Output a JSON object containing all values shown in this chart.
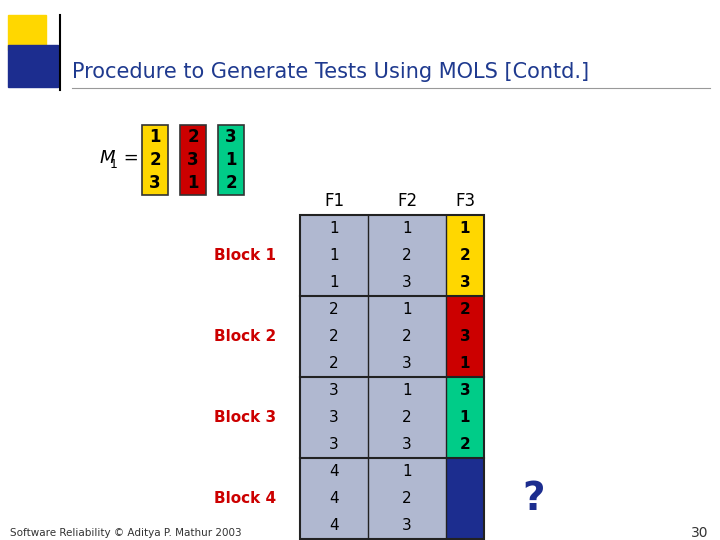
{
  "title": "Procedure to Generate Tests Using MOLS [Contd.]",
  "title_color": "#1F3A8F",
  "title_fontsize": 15,
  "bg_color": "#FFFFFF",
  "slide_number": "30",
  "footer_text": "Software Reliability © Aditya P. Mathur 2003",
  "M1_cols": [
    {
      "values": [
        "1",
        "2",
        "3"
      ],
      "color": "#FFD700"
    },
    {
      "values": [
        "2",
        "3",
        "1"
      ],
      "color": "#CC0000"
    },
    {
      "values": [
        "3",
        "1",
        "2"
      ],
      "color": "#00CC88"
    }
  ],
  "blocks": [
    {
      "label": "Block 1",
      "F1": [
        "1",
        "1",
        "1"
      ],
      "F2": [
        "1",
        "2",
        "3"
      ],
      "F3_values": [
        "1",
        "2",
        "3"
      ],
      "F3_color": "#FFD700"
    },
    {
      "label": "Block 2",
      "F1": [
        "2",
        "2",
        "2"
      ],
      "F2": [
        "1",
        "2",
        "3"
      ],
      "F3_values": [
        "2",
        "3",
        "1"
      ],
      "F3_color": "#CC0000"
    },
    {
      "label": "Block 3",
      "F1": [
        "3",
        "3",
        "3"
      ],
      "F2": [
        "1",
        "2",
        "3"
      ],
      "F3_values": [
        "3",
        "1",
        "2"
      ],
      "F3_color": "#00CC88"
    },
    {
      "label": "Block 4",
      "F1": [
        "4",
        "4",
        "4"
      ],
      "F2": [
        "1",
        "2",
        "3"
      ],
      "F3_values": [
        "",
        "",
        ""
      ],
      "F3_color": "#1C2D8F"
    }
  ],
  "block_label_color": "#CC0000",
  "table_bg": "#B0B8D0",
  "table_border": "#222222",
  "question_mark": "?",
  "question_mark_color": "#1C2D8F",
  "deco_yellow": "#FFD700",
  "deco_blue": "#1C2D8F"
}
